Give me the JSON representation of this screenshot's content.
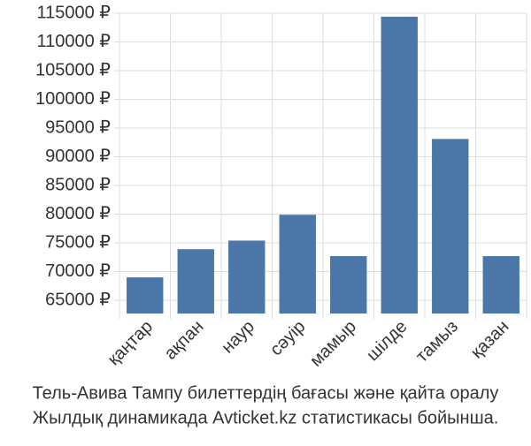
{
  "chart_data": {
    "type": "bar",
    "categories": [
      "қаңтар",
      "ақпан",
      "наур",
      "сәуір",
      "мамыр",
      "шілде",
      "тамыз",
      "қазан"
    ],
    "values": [
      69000,
      73900,
      75400,
      79900,
      72700,
      114400,
      93100,
      72700
    ],
    "color": "#4a76a8",
    "ylim": [
      62700,
      115000
    ],
    "yticks": [
      {
        "value": 65000,
        "label": "65000 ₽"
      },
      {
        "value": 70000,
        "label": "70000 ₽"
      },
      {
        "value": 75000,
        "label": "75000 ₽"
      },
      {
        "value": 80000,
        "label": "80000 ₽"
      },
      {
        "value": 85000,
        "label": "85000 ₽"
      },
      {
        "value": 90000,
        "label": "90000 ₽"
      },
      {
        "value": 95000,
        "label": "95000 ₽"
      },
      {
        "value": 100000,
        "label": "100000 ₽"
      },
      {
        "value": 105000,
        "label": "105000 ₽"
      },
      {
        "value": 110000,
        "label": "110000 ₽"
      },
      {
        "value": 115000,
        "label": "115000 ₽"
      }
    ],
    "grid": true,
    "caption": [
      "Тель-Авива Тампу билеттердің бағасы және қайта оралу",
      "Жылдық динамикада Avticket.kz статистикасы бойынша."
    ]
  }
}
